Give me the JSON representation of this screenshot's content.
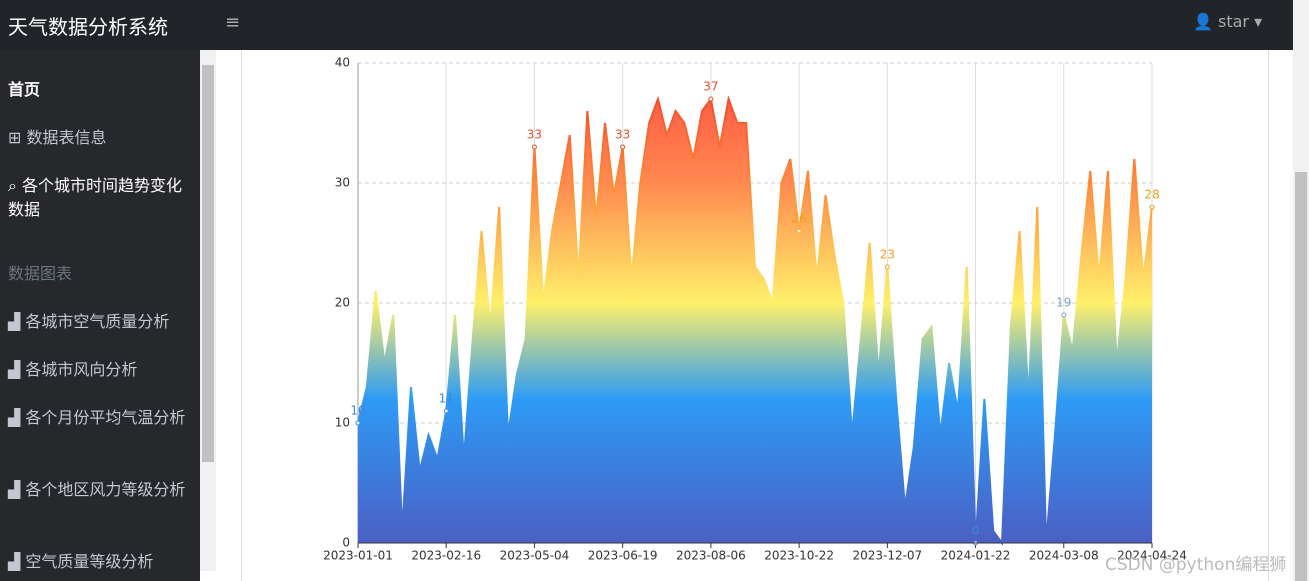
{
  "header": {
    "title": "天气数据分析系统",
    "user": "star"
  },
  "sidebar": {
    "items": [
      "首页",
      "数据表信息",
      "各个城市时间趋势变化数据"
    ],
    "section": "数据图表",
    "chart_items": [
      "各城市空气质量分析",
      "各城市风向分析",
      "各个月份平均气温分析",
      "各个地区风力等级分析",
      "空气质量等级分析"
    ]
  },
  "watermark": "CSDN @python编程狮",
  "chart_data": {
    "type": "area",
    "categories": [
      "2023-01-01",
      null,
      null,
      null,
      null,
      null,
      null,
      null,
      null,
      null,
      "2023-02-16",
      null,
      null,
      null,
      null,
      null,
      null,
      null,
      null,
      null,
      "2023-05-04",
      null,
      null,
      null,
      null,
      null,
      null,
      null,
      null,
      null,
      "2023-06-19",
      null,
      null,
      null,
      null,
      null,
      null,
      null,
      null,
      null,
      "2023-08-06",
      null,
      null,
      null,
      null,
      null,
      null,
      null,
      null,
      null,
      "2023-10-22",
      null,
      null,
      null,
      null,
      null,
      null,
      null,
      null,
      null,
      "2023-12-07",
      null,
      null,
      null,
      null,
      null,
      null,
      null,
      null,
      null,
      "2024-01-22",
      null,
      null,
      null,
      null,
      null,
      null,
      null,
      null,
      null,
      "2024-03-08",
      null,
      null,
      null,
      null,
      null,
      null,
      null,
      null,
      null,
      "2024-04-24"
    ],
    "values": [
      10,
      13,
      21,
      15,
      19,
      1,
      13,
      6,
      9,
      7,
      11,
      19,
      7,
      17,
      26,
      18,
      28,
      9,
      14,
      17,
      33,
      20,
      26,
      30,
      34,
      22,
      36,
      27,
      35,
      29,
      33,
      22,
      30,
      35,
      37,
      34,
      36,
      35,
      32,
      36,
      37,
      33,
      37,
      35,
      35,
      23,
      22,
      20,
      30,
      32,
      26,
      31,
      22,
      29,
      24,
      20,
      9,
      17,
      25,
      14,
      23,
      12,
      3,
      8,
      17,
      18,
      9,
      15,
      11,
      23,
      0,
      12,
      1,
      0,
      18,
      26,
      12,
      28,
      0,
      9,
      19,
      16,
      24,
      31,
      22,
      31,
      15,
      22,
      32,
      22,
      28
    ],
    "ylim": [
      0,
      40
    ],
    "yticks": [
      0,
      10,
      20,
      30,
      40
    ],
    "grid": true
  }
}
